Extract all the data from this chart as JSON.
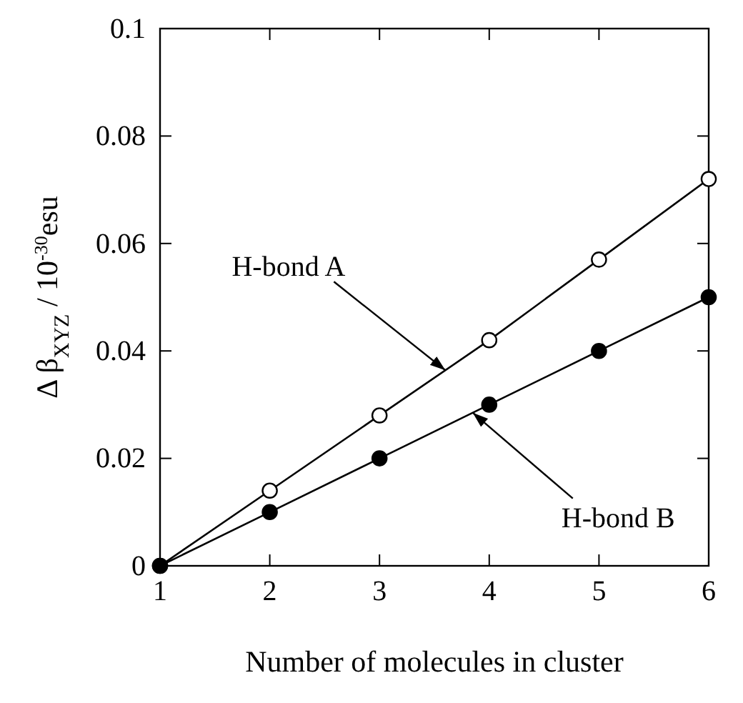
{
  "chart_data": {
    "type": "line",
    "xlabel": "Number of molecules in cluster",
    "ylabel": "Δ β$_{XYZ}$ / 10$^{-30}$esu",
    "x": [
      1,
      2,
      3,
      4,
      5,
      6
    ],
    "series": [
      {
        "color": "#ffffff",
        "values": [
          0,
          0.014,
          0.028,
          0.042,
          0.057,
          0.072
        ]
      },
      {
        "color": "#000000",
        "values": [
          0,
          0.01,
          0.02,
          0.03,
          0.04,
          0.05
        ]
      }
    ],
    "xlim": [
      1,
      6
    ],
    "xticks": [
      1,
      2,
      3,
      4,
      5,
      6
    ],
    "ylim": [
      0,
      0.1
    ],
    "yticks": [
      0,
      0.02,
      0.04,
      0.06,
      0.08,
      0.1
    ],
    "marker": "circle",
    "line_style": "solid",
    "grid": false,
    "annotations": [
      {
        "text": "H-bond A",
        "x": 3.6,
        "y": 0.0364
      },
      {
        "text": "H-bond B",
        "x": 3.85,
        "y": 0.0285
      }
    ]
  }
}
